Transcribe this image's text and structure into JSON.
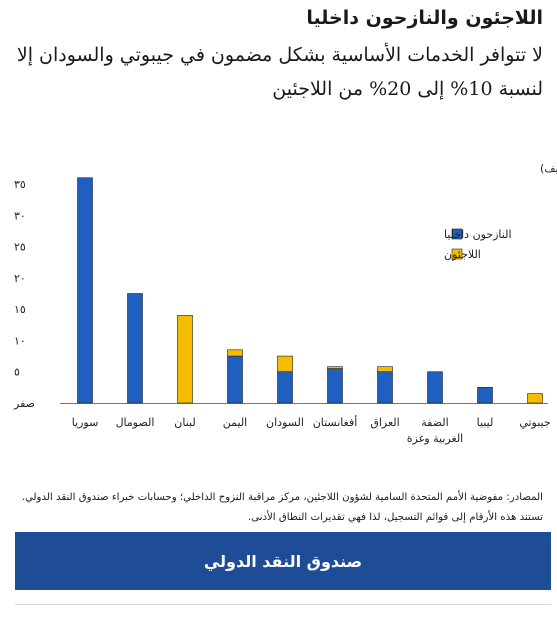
{
  "title": "اللاجئون والنازحون داخليا",
  "subtitle": "لا تتوافر الخدمات الأساسية بشكل مضمون في جيبوتي والسودان إلا لنسبة 10% إلى 20% من اللاجئين",
  "chart_data": {
    "type": "bar",
    "stacked": true,
    "ylabel": "(% من سكان البلد المضيف)",
    "ylim": [
      0,
      35
    ],
    "yticks": [
      0,
      5,
      10,
      15,
      20,
      25,
      30,
      35
    ],
    "ytick_labels": [
      "صفر",
      "٥",
      "١٠",
      "١٥",
      "٢٠",
      "٢٥",
      "٣٠",
      "٣٥"
    ],
    "categories": [
      "سوريا",
      "الصومال",
      "لبنان",
      "اليمن",
      "السودان",
      "أفغانستان",
      "العراق",
      "الضفة الغربية وغزة",
      "ليبيا",
      "جيبوتي"
    ],
    "series": [
      {
        "name": "النازحون داخليا",
        "color": "#1f5fbf",
        "values": [
          36,
          17.5,
          0,
          7.5,
          5,
          5.5,
          5,
          5,
          2.5,
          0
        ]
      },
      {
        "name": "اللاجئون",
        "color": "#f5bc00",
        "values": [
          0,
          0,
          14,
          1,
          2.5,
          0.3,
          0.8,
          0,
          0,
          1.5
        ]
      }
    ],
    "legend_position": "top-right"
  },
  "sources": "المصادر: مفوضية الأمم المتحدة السامية لشؤون اللاجئين، مركز مراقبة النزوح الداخلي؛ وحسابات خبراء صندوق النقد الدولي.",
  "note": "تستند هذه الأرقام إلى قوائم التسجيل، لذا فهي تقديرات النطاق الأدنى.",
  "footer_button": "صندوق النقد الدولي"
}
